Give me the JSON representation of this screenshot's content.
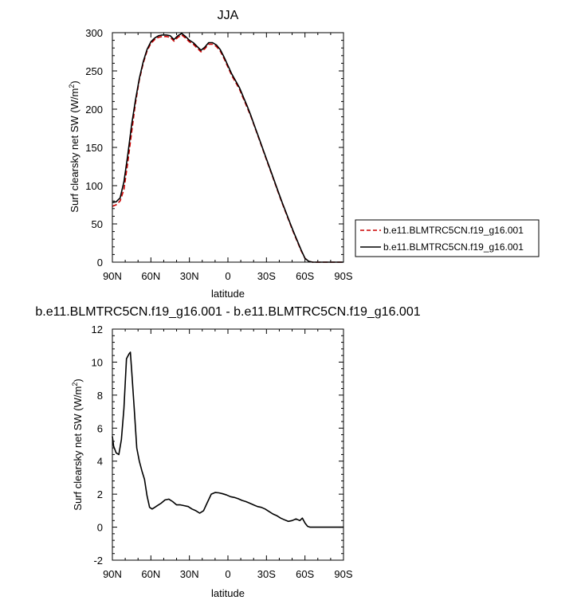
{
  "chart_data": [
    {
      "type": "line",
      "title": "JJA",
      "xlabel": "latitude",
      "ylabel_main": "Surf clearsky net SW (W/m",
      "ylabel_sup": "2",
      "ylabel_close": ")",
      "xlim": [
        90,
        -90
      ],
      "ylim": [
        0,
        300
      ],
      "x_ticks": [
        90,
        60,
        30,
        0,
        -30,
        -60,
        -90
      ],
      "x_tick_labels": [
        "90N",
        "60N",
        "30N",
        "0",
        "30S",
        "60S",
        "90S"
      ],
      "y_ticks": [
        0,
        50,
        100,
        150,
        200,
        250,
        300
      ],
      "y_tick_labels": [
        "0",
        "50",
        "100",
        "150",
        "200",
        "250",
        "300"
      ],
      "legend_position": "right",
      "series": [
        {
          "name": "b.e11.BLMTRC5CN.f19_g16.001",
          "color": "#cc0000",
          "dash": "dashed",
          "x": [
            90,
            87,
            84,
            81,
            78,
            75,
            72,
            69,
            66,
            63,
            60,
            57,
            54,
            51,
            48,
            45,
            42,
            39,
            36,
            33,
            30,
            27,
            24,
            21,
            18,
            15,
            12,
            9,
            6,
            3,
            0,
            -3,
            -6,
            -9,
            -12,
            -15,
            -18,
            -21,
            -24,
            -27,
            -30,
            -33,
            -36,
            -39,
            -42,
            -45,
            -48,
            -51,
            -54,
            -57,
            -60,
            -63,
            -66,
            -69,
            -72,
            -75,
            -78,
            -81,
            -84,
            -87,
            -90
          ],
          "y": [
            73,
            75,
            80,
            95,
            130,
            170,
            208,
            238,
            260,
            276,
            286,
            291,
            294,
            295,
            295,
            294,
            289,
            294,
            297,
            293,
            288,
            285,
            280,
            275,
            279,
            285,
            285,
            282,
            276,
            266,
            255,
            244,
            235,
            226,
            214,
            202,
            190,
            176,
            162,
            148,
            134,
            120,
            106,
            92,
            78,
            65,
            52,
            39,
            27,
            15,
            5,
            1,
            0,
            0,
            0,
            0,
            0,
            0,
            0,
            0,
            0
          ]
        },
        {
          "name": "b.e11.BLMTRC5CN.f19_g16.001",
          "color": "#000000",
          "dash": "solid",
          "x": [
            90,
            87,
            84,
            81,
            78,
            75,
            72,
            69,
            66,
            63,
            60,
            57,
            54,
            51,
            48,
            45,
            42,
            39,
            36,
            33,
            30,
            27,
            24,
            21,
            18,
            15,
            12,
            9,
            6,
            3,
            0,
            -3,
            -6,
            -9,
            -12,
            -15,
            -18,
            -21,
            -24,
            -27,
            -30,
            -33,
            -36,
            -39,
            -42,
            -45,
            -48,
            -51,
            -54,
            -57,
            -60,
            -63,
            -66,
            -69,
            -72,
            -75,
            -78,
            -81,
            -84,
            -87,
            -90
          ],
          "y": [
            78,
            79,
            84,
            105,
            140,
            180,
            212,
            240,
            262,
            278,
            288,
            293,
            296,
            297,
            297,
            296,
            291,
            296,
            299,
            295,
            290,
            287,
            282,
            277,
            281,
            287,
            287,
            284,
            278,
            268,
            257,
            246,
            237,
            228,
            216,
            204,
            191,
            177,
            163,
            149,
            135,
            121,
            107,
            93,
            79,
            66,
            53,
            40,
            28,
            16,
            5,
            1,
            0,
            0,
            0,
            0,
            0,
            0,
            0,
            0,
            0
          ]
        }
      ]
    },
    {
      "type": "line",
      "title": "b.e11.BLMTRC5CN.f19_g16.001 - b.e11.BLMTRC5CN.f19_g16.001",
      "xlabel": "latitude",
      "ylabel_main": "Surf clearsky net SW (W/m",
      "ylabel_sup": "2",
      "ylabel_close": ")",
      "xlim": [
        90,
        -90
      ],
      "ylim": [
        -2,
        12
      ],
      "x_ticks": [
        90,
        60,
        30,
        0,
        -30,
        -60,
        -90
      ],
      "x_tick_labels": [
        "90N",
        "60N",
        "30N",
        "0",
        "30S",
        "60S",
        "90S"
      ],
      "y_ticks": [
        -2,
        0,
        2,
        4,
        6,
        8,
        10,
        12
      ],
      "y_tick_labels": [
        "-2",
        "0",
        "2",
        "4",
        "6",
        "8",
        "10",
        "12"
      ],
      "series": [
        {
          "color": "#000000",
          "dash": "solid",
          "x": [
            90,
            89,
            87,
            85,
            83,
            81,
            79,
            77,
            76,
            75,
            73,
            71,
            69,
            67,
            65,
            63,
            61,
            59,
            57,
            55,
            52,
            49,
            46,
            43,
            40,
            37,
            34,
            31,
            28,
            25,
            22,
            19,
            16,
            13,
            10,
            7,
            4,
            1,
            -2,
            -5,
            -8,
            -11,
            -14,
            -17,
            -20,
            -23,
            -26,
            -29,
            -32,
            -35,
            -38,
            -41,
            -44,
            -47,
            -50,
            -53,
            -56,
            -58,
            -60,
            -62,
            -64,
            -66,
            -68,
            -70,
            -73,
            -76,
            -79,
            -82,
            -85,
            -88,
            -90
          ],
          "y": [
            5.5,
            4.9,
            4.5,
            4.4,
            5.3,
            7.2,
            10.2,
            10.5,
            10.6,
            9.5,
            7.2,
            4.8,
            4.0,
            3.4,
            2.9,
            1.9,
            1.2,
            1.1,
            1.2,
            1.3,
            1.45,
            1.65,
            1.7,
            1.55,
            1.35,
            1.35,
            1.3,
            1.25,
            1.1,
            1.0,
            0.85,
            1.0,
            1.5,
            2.0,
            2.1,
            2.08,
            2.02,
            1.95,
            1.85,
            1.8,
            1.72,
            1.62,
            1.55,
            1.45,
            1.35,
            1.25,
            1.2,
            1.1,
            0.95,
            0.8,
            0.7,
            0.55,
            0.45,
            0.35,
            0.4,
            0.5,
            0.4,
            0.55,
            0.25,
            0.05,
            0.0,
            0.0,
            0.0,
            0.0,
            0.0,
            0.0,
            0.0,
            0.0,
            0.0,
            0.0,
            0.0
          ]
        }
      ]
    }
  ]
}
